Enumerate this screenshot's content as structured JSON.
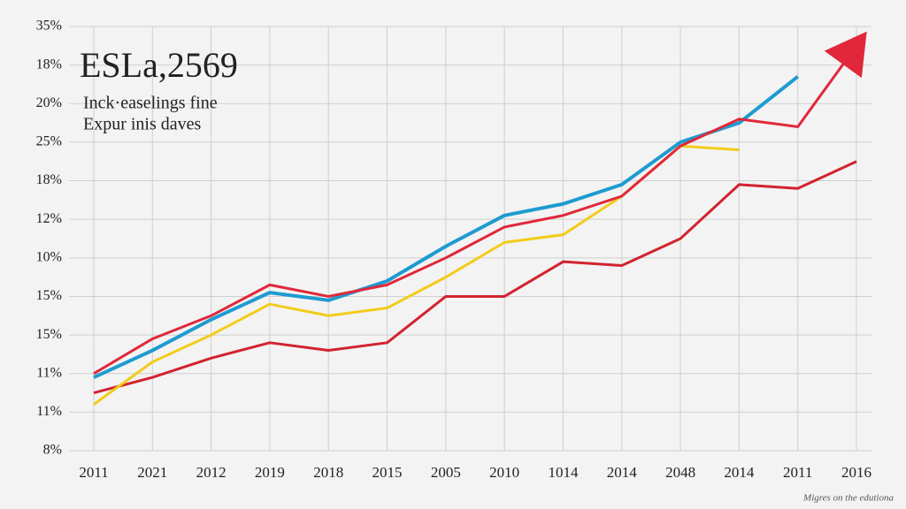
{
  "chart_data": {
    "type": "line",
    "title": "ESLa,2569",
    "subtitle": [
      "Inck·easelings fine",
      "Expur inis daves"
    ],
    "footnote": "Migres on the edutiona",
    "categories": [
      "2011",
      "2021",
      "2012",
      "2019",
      "2018",
      "2015",
      "2005",
      "2010",
      "1014",
      "2014",
      "2048",
      "2014",
      "2011",
      "2016"
    ],
    "ylim": [
      0,
      11
    ],
    "yticks": [
      {
        "value": 0,
        "label": "8%"
      },
      {
        "value": 1,
        "label": "11%"
      },
      {
        "value": 2,
        "label": "11%"
      },
      {
        "value": 3,
        "label": "15%"
      },
      {
        "value": 4,
        "label": "15%"
      },
      {
        "value": 5,
        "label": "10%"
      },
      {
        "value": 6,
        "label": "12%"
      },
      {
        "value": 7,
        "label": "18%"
      },
      {
        "value": 8,
        "label": "25%"
      },
      {
        "value": 9,
        "label": "20%"
      },
      {
        "value": 10,
        "label": "18%"
      },
      {
        "value": 11,
        "label": "35%"
      }
    ],
    "grid": true,
    "series": [
      {
        "color": "#d2232f",
        "values": [
          1.5,
          1.9,
          2.4,
          2.8,
          2.6,
          2.8,
          4.0,
          4.0,
          4.9,
          4.8,
          5.5,
          6.9,
          6.8,
          7.5
        ]
      },
      {
        "color": "#f2cc1a",
        "values": [
          1.2,
          2.3,
          3.0,
          3.8,
          3.5,
          3.7,
          4.5,
          5.4,
          5.6,
          6.6,
          7.9,
          7.8,
          null,
          null
        ]
      },
      {
        "color": "#1e9bd0",
        "values": [
          1.9,
          2.6,
          3.4,
          4.1,
          3.9,
          4.4,
          5.3,
          6.1,
          6.4,
          6.9,
          8.0,
          8.5,
          9.7,
          null
        ]
      },
      {
        "color": "#e0283a",
        "values": [
          2.0,
          2.9,
          3.5,
          4.3,
          4.0,
          4.3,
          5.0,
          5.8,
          6.1,
          6.6,
          7.9,
          8.6,
          8.4,
          10.5
        ]
      }
    ]
  }
}
